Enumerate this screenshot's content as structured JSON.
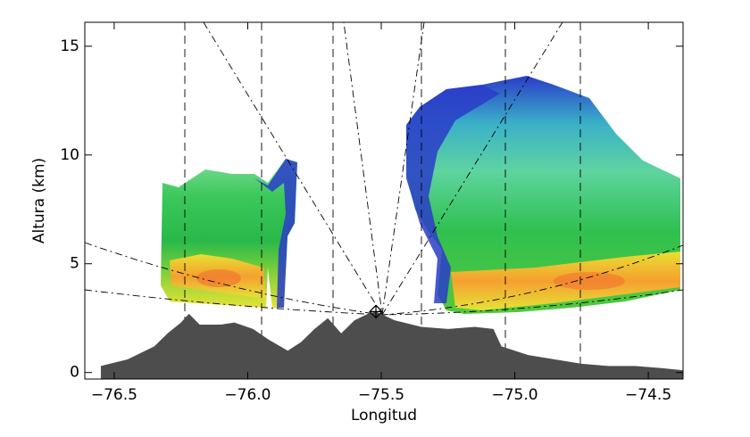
{
  "chart_data": {
    "type": "area",
    "xlabel": "Longitud",
    "ylabel": "Altura (km)",
    "xlim": [
      -76.61,
      -74.37
    ],
    "ylim": [
      -0.3,
      16.1
    ],
    "xticks": [
      {
        "value": -76.5,
        "label": "−76.5"
      },
      {
        "value": -76.0,
        "label": "−76.0"
      },
      {
        "value": -75.5,
        "label": "−75.5"
      },
      {
        "value": -75.0,
        "label": "−75.0"
      },
      {
        "value": -74.5,
        "label": "−74.5"
      }
    ],
    "yticks": [
      0,
      5,
      10,
      15
    ],
    "color": "#4d4d4d",
    "x": [
      -76.55,
      -76.45,
      -76.35,
      -76.3,
      -76.25,
      -76.22,
      -76.18,
      -76.1,
      -76.05,
      -75.98,
      -75.92,
      -75.85,
      -75.8,
      -75.75,
      -75.7,
      -75.65,
      -75.6,
      -75.55,
      -75.52,
      -75.45,
      -75.35,
      -75.25,
      -75.15,
      -75.08,
      -75.05,
      -74.95,
      -74.85,
      -74.75,
      -74.65,
      -74.55,
      -74.45,
      -74.37
    ],
    "values": [
      0.3,
      0.6,
      1.2,
      1.8,
      2.3,
      2.7,
      2.2,
      2.2,
      2.3,
      2.0,
      1.5,
      1.0,
      1.4,
      2.0,
      2.5,
      1.8,
      2.4,
      2.7,
      2.8,
      2.4,
      2.1,
      2.0,
      2.1,
      2.0,
      1.2,
      0.8,
      0.6,
      0.4,
      0.3,
      0.3,
      0.2,
      0.1
    ],
    "radar": {
      "x": -75.52,
      "y": 2.8
    }
  }
}
